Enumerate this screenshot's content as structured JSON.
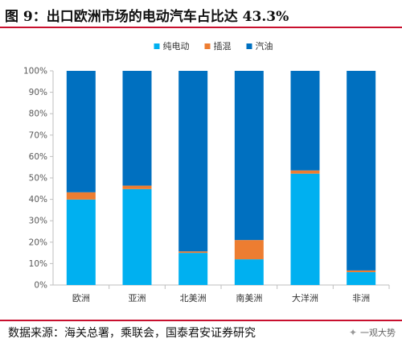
{
  "figure": {
    "title": "图 9：出口欧洲市场的电动汽车占比达 43.3%",
    "source": "数据来源：海关总署，乘联会，国泰君安证券研究",
    "watermark": "一观大势"
  },
  "colors": {
    "bev": "#00b0f0",
    "phev": "#ed7d31",
    "ice": "#0070c0",
    "accent": "#c8102e"
  },
  "chart_data": {
    "type": "bar",
    "stacked": true,
    "categories": [
      "欧洲",
      "亚洲",
      "北美洲",
      "南美洲",
      "大洋洲",
      "非洲"
    ],
    "series": [
      {
        "name": "纯电动",
        "color": "#00b0f0",
        "values": [
          39.9,
          44.8,
          15.0,
          12.0,
          52.0,
          6.0
        ]
      },
      {
        "name": "插混",
        "color": "#ed7d31",
        "values": [
          3.4,
          1.6,
          0.7,
          9.0,
          1.5,
          0.8
        ]
      },
      {
        "name": "汽油",
        "color": "#0070c0",
        "values": [
          56.7,
          53.6,
          84.3,
          79.0,
          46.5,
          93.2
        ]
      }
    ],
    "ylim": [
      0,
      100
    ],
    "yticks": [
      "0%",
      "10%",
      "20%",
      "30%",
      "40%",
      "50%",
      "60%",
      "70%",
      "80%",
      "90%",
      "100%"
    ],
    "legend_position": "top",
    "grid": false
  }
}
